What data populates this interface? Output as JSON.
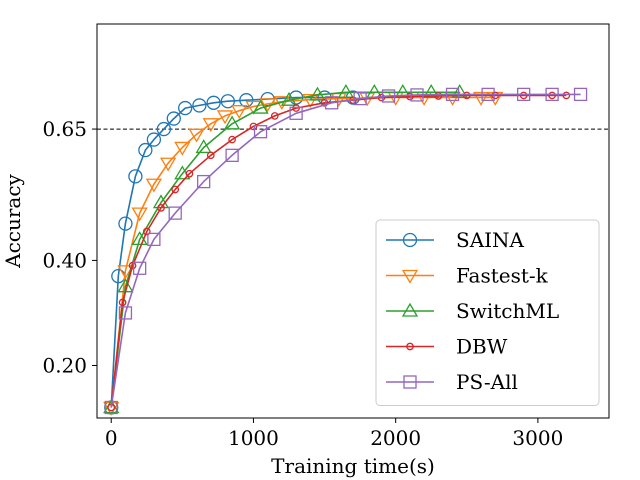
{
  "chart_data": {
    "type": "line",
    "xlabel": "Training time(s)",
    "ylabel": "Accuracy",
    "xlim": [
      -100,
      3500
    ],
    "ylim": [
      0.1,
      0.85
    ],
    "xticks": [
      0,
      1000,
      2000,
      3000
    ],
    "xtick_labels": [
      "0",
      "1000",
      "2000",
      "3000"
    ],
    "yticks": [
      0.2,
      0.4,
      0.65
    ],
    "ytick_labels": [
      "0.20",
      "0.40",
      "0.65"
    ],
    "reference_line": {
      "y": 0.65,
      "style": "dashed",
      "color": "#000000"
    },
    "grid": false,
    "legend": {
      "position": "lower-right"
    },
    "series": [
      {
        "name": "SAINA",
        "color": "#1f77b4",
        "marker": "circle",
        "x": [
          0,
          50,
          100,
          170,
          240,
          300,
          370,
          440,
          520,
          620,
          720,
          820,
          950,
          1100,
          1300,
          1500,
          1700
        ],
        "y": [
          0.12,
          0.37,
          0.47,
          0.56,
          0.61,
          0.63,
          0.65,
          0.67,
          0.69,
          0.695,
          0.7,
          0.703,
          0.705,
          0.707,
          0.71,
          0.71,
          0.71
        ]
      },
      {
        "name": "Fastest-k",
        "color": "#ff7f0e",
        "marker": "triangle-down",
        "x": [
          0,
          100,
          200,
          300,
          400,
          500,
          600,
          700,
          800,
          900,
          1000,
          1100,
          1200,
          1400,
          1600,
          1800,
          2000,
          2200,
          2400,
          2600,
          2700
        ],
        "y": [
          0.12,
          0.38,
          0.49,
          0.545,
          0.585,
          0.615,
          0.64,
          0.66,
          0.675,
          0.685,
          0.693,
          0.698,
          0.702,
          0.706,
          0.708,
          0.709,
          0.71,
          0.71,
          0.71,
          0.71,
          0.71
        ]
      },
      {
        "name": "SwitchML",
        "color": "#2ca02c",
        "marker": "triangle-up",
        "x": [
          0,
          100,
          200,
          350,
          500,
          650,
          850,
          1050,
          1250,
          1450,
          1650,
          1850,
          2050,
          2250,
          2450
        ],
        "y": [
          0.12,
          0.35,
          0.44,
          0.51,
          0.565,
          0.615,
          0.66,
          0.69,
          0.705,
          0.715,
          0.72,
          0.72,
          0.72,
          0.72,
          0.72
        ]
      },
      {
        "name": "DBW",
        "color": "#d62728",
        "marker": "circle-small",
        "x": [
          0,
          80,
          150,
          250,
          350,
          450,
          550,
          700,
          850,
          1000,
          1150,
          1300,
          1500,
          1700,
          1900,
          2100,
          2300,
          2500,
          2700,
          2900,
          3100,
          3200
        ],
        "y": [
          0.12,
          0.32,
          0.39,
          0.455,
          0.5,
          0.535,
          0.565,
          0.6,
          0.63,
          0.655,
          0.675,
          0.69,
          0.7,
          0.705,
          0.71,
          0.712,
          0.713,
          0.714,
          0.714,
          0.714,
          0.714,
          0.714
        ]
      },
      {
        "name": "PS-All",
        "color": "#9467bd",
        "marker": "square",
        "x": [
          0,
          100,
          200,
          300,
          450,
          650,
          850,
          1050,
          1300,
          1550,
          1750,
          1950,
          2150,
          2400,
          2650,
          2900,
          3100,
          3300
        ],
        "y": [
          0.12,
          0.3,
          0.385,
          0.44,
          0.49,
          0.55,
          0.6,
          0.645,
          0.68,
          0.7,
          0.708,
          0.713,
          0.715,
          0.716,
          0.716,
          0.716,
          0.716,
          0.716
        ]
      }
    ]
  }
}
